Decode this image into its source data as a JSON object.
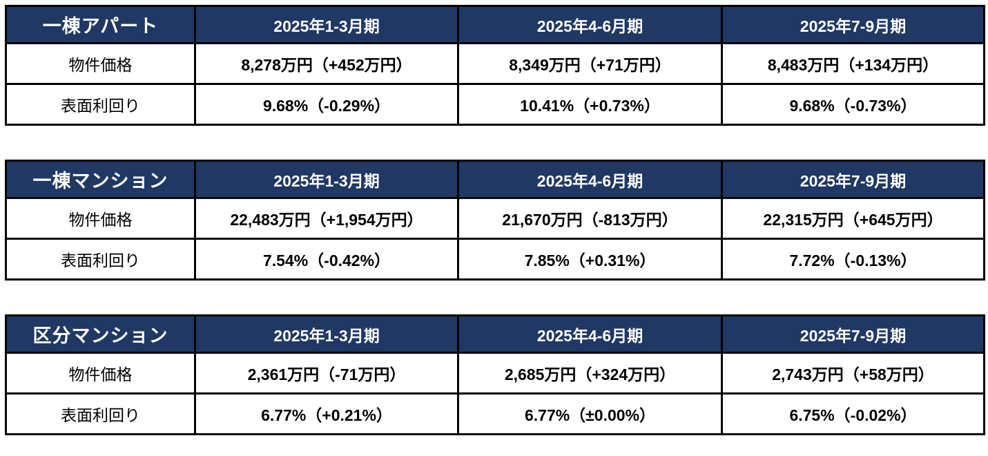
{
  "styles": {
    "header_bg": "#203864",
    "header_text": "#ffffff",
    "border_color": "#000000",
    "value_text": "#000000"
  },
  "chart_data": [
    {
      "type": "table",
      "category": "一棟アパート",
      "quarters": [
        "2025年1-3月期",
        "2025年4-6月期",
        "2025年7-9月期"
      ],
      "rows": [
        {
          "label": "物件価格",
          "values": [
            "8,278万円（+452万円）",
            "8,349万円（+71万円）",
            "8,483万円（+134万円）"
          ]
        },
        {
          "label": "表面利回り",
          "values": [
            "9.68%（-0.29%）",
            "10.41%（+0.73%）",
            "9.68%（-0.73%）"
          ]
        }
      ]
    },
    {
      "type": "table",
      "category": "一棟マンション",
      "quarters": [
        "2025年1-3月期",
        "2025年4-6月期",
        "2025年7-9月期"
      ],
      "rows": [
        {
          "label": "物件価格",
          "values": [
            "22,483万円（+1,954万円）",
            "21,670万円（-813万円）",
            "22,315万円（+645万円）"
          ]
        },
        {
          "label": "表面利回り",
          "values": [
            "7.54%（-0.42%）",
            "7.85%（+0.31%）",
            "7.72%（-0.13%）"
          ]
        }
      ]
    },
    {
      "type": "table",
      "category": "区分マンション",
      "quarters": [
        "2025年1-3月期",
        "2025年4-6月期",
        "2025年7-9月期"
      ],
      "rows": [
        {
          "label": "物件価格",
          "values": [
            "2,361万円（-71万円）",
            "2,685万円（+324万円）",
            "2,743万円（+58万円）"
          ]
        },
        {
          "label": "表面利回り",
          "values": [
            "6.77%（+0.21%）",
            "6.77%（±0.00%）",
            "6.75%（-0.02%）"
          ]
        }
      ]
    }
  ]
}
